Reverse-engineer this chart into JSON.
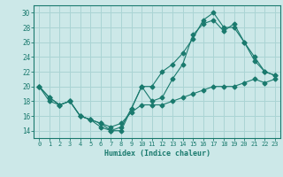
{
  "xlabel": "Humidex (Indice chaleur)",
  "xlim": [
    -0.5,
    23.5
  ],
  "ylim": [
    13.0,
    31.0
  ],
  "xticks": [
    0,
    1,
    2,
    3,
    4,
    5,
    6,
    7,
    8,
    9,
    10,
    11,
    12,
    13,
    14,
    15,
    16,
    17,
    18,
    19,
    20,
    21,
    22,
    23
  ],
  "yticks": [
    14,
    16,
    18,
    20,
    22,
    24,
    26,
    28,
    30
  ],
  "bg_color": "#cce8e8",
  "grid_color": "#aad4d4",
  "line_color": "#1a7a6e",
  "line1_x": [
    0,
    1,
    2,
    3,
    4,
    5,
    6,
    7,
    8,
    9,
    10,
    11,
    12,
    13,
    14,
    15,
    16,
    17,
    18,
    19,
    20,
    21,
    22,
    23
  ],
  "line1_y": [
    20,
    18,
    17.5,
    18,
    16,
    15.5,
    15,
    14.5,
    15,
    16.5,
    17.5,
    17.5,
    17.5,
    18,
    18.5,
    19,
    19.5,
    20,
    20,
    20,
    20.5,
    21,
    20.5,
    21
  ],
  "line2_x": [
    0,
    1,
    2,
    3,
    4,
    5,
    6,
    7,
    8,
    9,
    10,
    11,
    12,
    13,
    14,
    15,
    16,
    17,
    18,
    19,
    20,
    21,
    22,
    23
  ],
  "line2_y": [
    20,
    18.5,
    17.5,
    18,
    16,
    15.5,
    15,
    14,
    14,
    17,
    20,
    20,
    22,
    23,
    24.5,
    26.5,
    29,
    30,
    28,
    28,
    26,
    24,
    22,
    21.5
  ],
  "line3_x": [
    0,
    1,
    2,
    3,
    4,
    5,
    6,
    7,
    8,
    9,
    10,
    11,
    12,
    13,
    14,
    15,
    16,
    17,
    18,
    19,
    20,
    21,
    22,
    23
  ],
  "line3_y": [
    20,
    18.5,
    17.5,
    18,
    16,
    15.5,
    14.5,
    14,
    14.5,
    17,
    20,
    18,
    18.5,
    21,
    23,
    27,
    28.5,
    29,
    27.5,
    28.5,
    26,
    23.5,
    22,
    21.5
  ]
}
